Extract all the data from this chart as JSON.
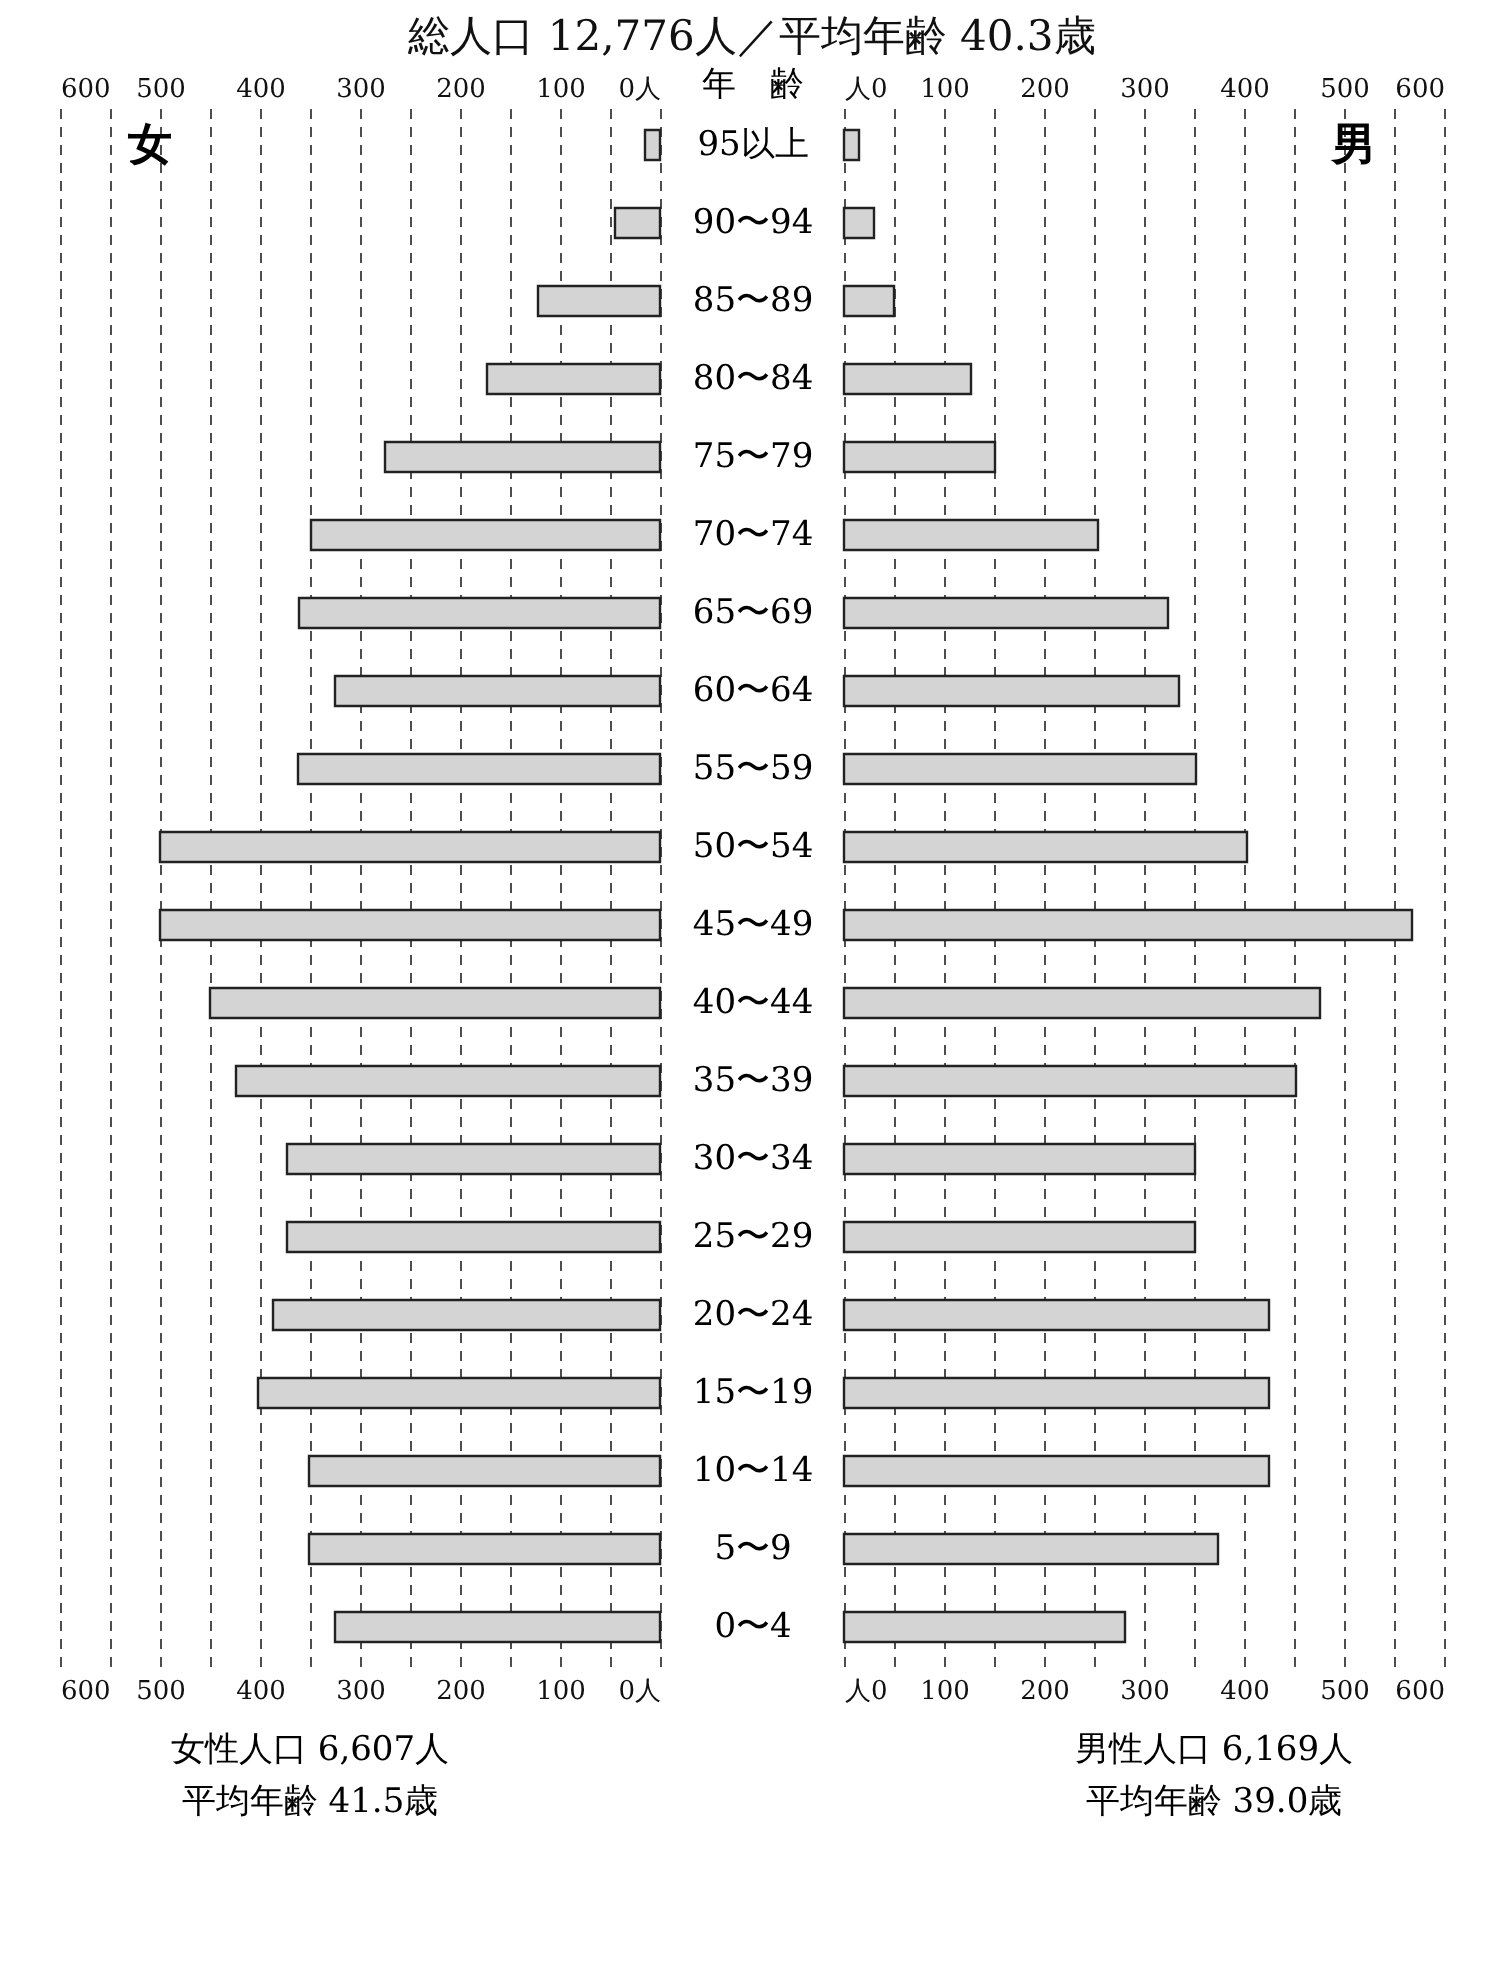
{
  "chart_data": [
    {
      "type": "bar",
      "orientation": "horizontal",
      "title": "総人口 12,776人／平均年齢 40.3歳",
      "ylabel": "年　齢",
      "categories": [
        "95以上",
        "90〜94",
        "85〜89",
        "80〜84",
        "75〜79",
        "70〜74",
        "65〜69",
        "60〜64",
        "55〜59",
        "50〜54",
        "45〜49",
        "40〜44",
        "35〜39",
        "30〜34",
        "25〜29",
        "20〜24",
        "15〜19",
        "10〜14",
        "5〜9",
        "0〜4"
      ],
      "series": [
        {
          "name": "女",
          "color": "#d4d4d4",
          "values": [
            15,
            45,
            122,
            173,
            275,
            349,
            361,
            325,
            362,
            500,
            500,
            450,
            424,
            373,
            373,
            387,
            402,
            351,
            351,
            325
          ]
        }
      ],
      "xlim": [
        600,
        0
      ],
      "xticks": [
        600,
        {
          "value": 550,
          "label": null
        },
        500,
        {
          "value": 450,
          "label": null
        },
        400,
        {
          "value": 350,
          "label": null
        },
        300,
        {
          "value": 250,
          "label": null
        },
        200,
        {
          "value": 150,
          "label": null
        },
        100,
        {
          "value": 50,
          "label": null
        },
        {
          "value": 0,
          "label": "0人"
        }
      ],
      "x2lim": [
        600,
        0
      ],
      "x2ticks": [
        600,
        500,
        400,
        300,
        200,
        100,
        {
          "value": 0,
          "label": "0人"
        }
      ],
      "grid": "x",
      "annotations": [
        "女性人口 6,607人",
        "平均年齢  41.5歳"
      ]
    },
    {
      "type": "bar",
      "orientation": "horizontal",
      "categories": [
        "95以上",
        "90〜94",
        "85〜89",
        "80〜84",
        "75〜79",
        "70〜74",
        "65〜69",
        "60〜64",
        "55〜59",
        "50〜54",
        "45〜49",
        "40〜44",
        "35〜39",
        "30〜34",
        "25〜29",
        "20〜24",
        "15〜19",
        "10〜14",
        "5〜9",
        "0〜4"
      ],
      "series": [
        {
          "name": "男",
          "color": "#d4d4d4",
          "values": [
            15,
            30,
            50,
            127,
            151,
            254,
            324,
            335,
            352,
            403,
            568,
            476,
            452,
            351,
            351,
            425,
            425,
            425,
            374,
            281
          ]
        }
      ],
      "xlim": [
        0,
        600
      ],
      "xticks": [
        {
          "value": 0,
          "label": "人0"
        },
        {
          "value": 50,
          "label": null
        },
        100,
        {
          "value": 150,
          "label": null
        },
        200,
        {
          "value": 250,
          "label": null
        },
        300,
        {
          "value": 350,
          "label": null
        },
        400,
        {
          "value": 450,
          "label": null
        },
        500,
        {
          "value": 550,
          "label": null
        },
        600
      ],
      "x2lim": [
        0,
        600
      ],
      "x2ticks": [
        {
          "value": 0,
          "label": "人0"
        },
        100,
        200,
        300,
        400,
        500,
        600
      ],
      "grid": "x",
      "tick_labels": "x",
      "annotations": [
        "男性人口 6,169人",
        "平均年齢  39.0歳"
      ]
    }
  ]
}
